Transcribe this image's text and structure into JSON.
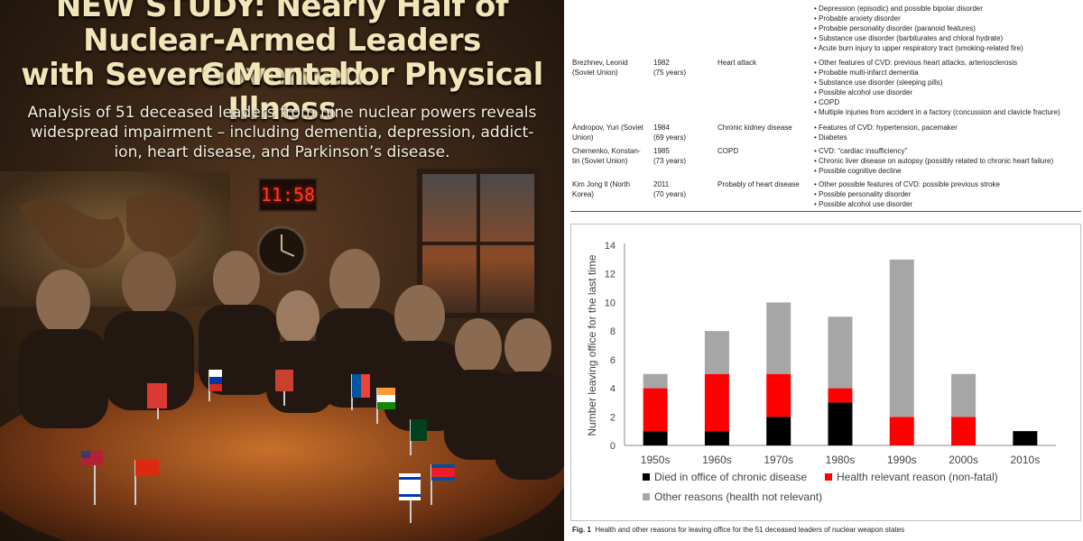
{
  "poster": {
    "headline": [
      "NEW STUDY: Nearly Half of",
      "Nuclear-Armed Leaders Governed",
      "with Severe Mental or Physical Illness"
    ],
    "subtitle": [
      "Analysis of 51 deceased leaders from nine nuclear powers reveals",
      "widespread impairment – including dementia, depression, addict-",
      "ion, heart disease, and Parkinson’s disease."
    ],
    "clock": "11:58"
  },
  "table": {
    "top_bullets": [
      "• Depression (episodic) and possible bipolar disorder",
      "• Probable anxiety disorder",
      "• Probable personality disorder (paranoid features)",
      "• Substance use disorder (barbiturates and chloral hydrate)",
      "• Acute burn injury to upper respiratory tract (smoking-related fire)"
    ],
    "rows": [
      {
        "leader": [
          "Brezhnev, Leonid",
          "(Soviet Union)"
        ],
        "year": [
          "1982",
          "(75 years)"
        ],
        "cause": [
          "Heart attack"
        ],
        "conditions": [
          "• Other features of CVD: previous heart attacks, arteriosclerosis",
          "• Probable multi-infarct dementia",
          "• Substance use disorder (sleeping pills)",
          "• Possible alcohol use disorder",
          "• COPD",
          "• Multiple injuries from accident in a factory (concussion and clavicle fracture)"
        ]
      },
      {
        "leader": [
          "Andropov, Yuri (Soviet",
          "Union)"
        ],
        "year": [
          "1984",
          "(69 years)"
        ],
        "cause": [
          "Chronic kidney disease"
        ],
        "conditions": [
          "• Features of CVD: hypertension, pacemaker",
          "• Diabetes"
        ]
      },
      {
        "leader": [
          "Chernenko, Konstan-",
          "tin (Soviet Union)"
        ],
        "year": [
          "1985",
          "(73 years)"
        ],
        "cause": [
          "COPD"
        ],
        "conditions": [
          "• CVD: “cardiac insufficiency”",
          "• Chronic liver disease on autopsy (possibly related to chronic heart failure)",
          "• Possible cognitive decline"
        ]
      },
      {
        "leader": [
          "Kim Jong Il (North",
          "Korea)"
        ],
        "year": [
          "2011",
          "(70 years)"
        ],
        "cause": [
          "Probably of heart disease"
        ],
        "conditions": [
          "• Other possible features of CVD: possible previous stroke",
          "• Possible personality disorder",
          "• Possible alcohol use disorder"
        ]
      }
    ]
  },
  "chart_data": {
    "type": "bar",
    "stacked": true,
    "categories": [
      "1950s",
      "1960s",
      "1970s",
      "1980s",
      "1990s",
      "2000s",
      "2010s"
    ],
    "series": [
      {
        "name": "Died in office of chronic disease",
        "color": "#000000",
        "values": [
          1,
          1,
          2,
          3,
          0,
          0,
          1
        ]
      },
      {
        "name": "Health relevant reason (non-fatal)",
        "color": "#ff0000",
        "values": [
          3,
          4,
          3,
          1,
          2,
          2,
          0
        ]
      },
      {
        "name": "Other reasons (health not relevant)",
        "color": "#a6a6a6",
        "values": [
          1,
          3,
          5,
          5,
          11,
          3,
          0
        ]
      }
    ],
    "ylabel": "Number leaving office for the last time",
    "ylim": [
      0,
      14
    ],
    "yticks": [
      0,
      2,
      4,
      6,
      8,
      10,
      12,
      14
    ],
    "legend_position": "bottom",
    "caption_label": "Fig. 1",
    "caption": "Health and other reasons for leaving office for the 51 deceased leaders of nuclear weapon states"
  }
}
